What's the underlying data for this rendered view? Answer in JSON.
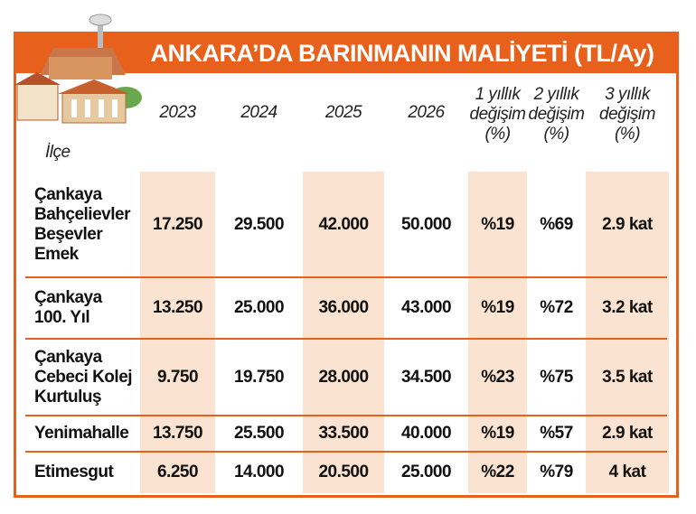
{
  "header": {
    "title": "ANKARA’DA BARINMANIN MALİYETİ (TL/Ay)"
  },
  "table": {
    "district_header": "İlçe",
    "columns": [
      "2023",
      "2024",
      "2025",
      "2026",
      "1 yıllık\ndeğişim\n(%)",
      "2 yıllık\ndeğişim\n(%)",
      "3 yıllık\ndeğişim\n(%)"
    ],
    "rows": [
      [
        "Çankaya\nBahçelievler\nBeşevler\nEmek",
        "17.250",
        "29.500",
        "42.000",
        "50.000",
        "%19",
        "%69",
        "2.9 kat"
      ],
      [
        "Çankaya\n100. Yıl",
        "13.250",
        "25.000",
        "36.000",
        "43.000",
        "%19",
        "%72",
        "3.2 kat"
      ],
      [
        "Çankaya\nCebeci Kolej\nKurtuluş",
        "9.750",
        "19.750",
        "28.000",
        "34.500",
        "%23",
        "%75",
        "3.5 kat"
      ],
      [
        "Yenimahalle",
        "13.750",
        "25.500",
        "33.500",
        "40.000",
        "%19",
        "%57",
        "2.9 kat"
      ],
      [
        "Etimesgut",
        "6.250",
        "14.000",
        "20.500",
        "25.000",
        "%22",
        "%79",
        "4 kat"
      ]
    ]
  }
}
